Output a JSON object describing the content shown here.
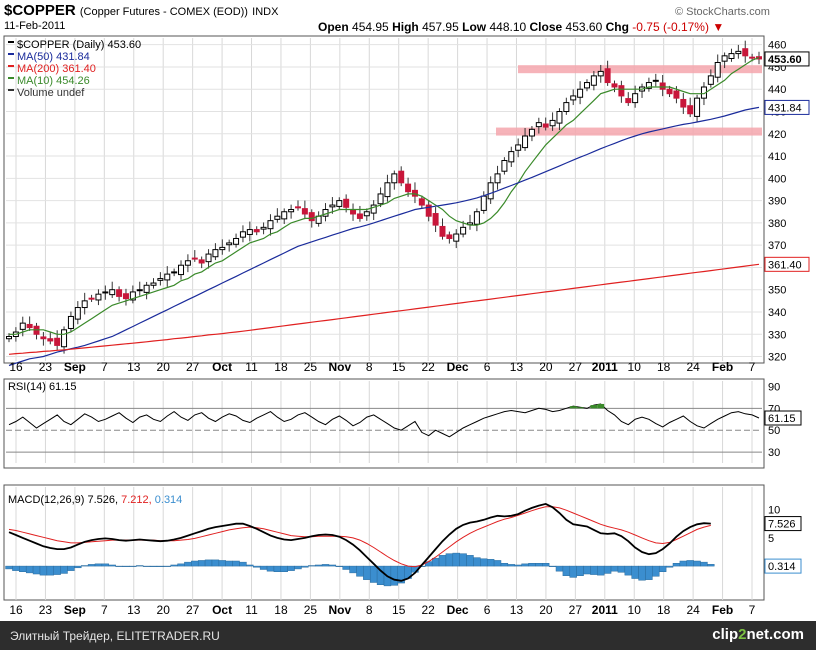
{
  "header": {
    "symbol": "$COPPER",
    "name": "(Copper Futures - COMEX (EOD))",
    "exchange": "INDX",
    "date": "11-Feb-2011",
    "brand": "© StockCharts.com",
    "open_label": "Open",
    "open": "454.95",
    "high_label": "High",
    "high": "457.95",
    "low_label": "Low",
    "low": "448.10",
    "close_label": "Close",
    "close": "453.60",
    "chg_label": "Chg",
    "chg": "-0.75 (-0.17%)"
  },
  "legend": {
    "price": "$COPPER (Daily) 453.60",
    "ma50": "MA(50) 431.84",
    "ma200": "MA(200) 361.40",
    "ma10": "MA(10) 454.26",
    "volume": "Volume undef"
  },
  "rsi": {
    "label": "RSI(14) 61.15",
    "value_tag": "61.15",
    "ticks": [
      "90",
      "70",
      "50",
      "30"
    ]
  },
  "macd": {
    "label_prefix": "MACD(12,26,9)",
    "macd": "7.526",
    "signal": "7.212",
    "hist": "0.314",
    "ticks": [
      "10",
      "5"
    ]
  },
  "price_tags": {
    "close": "453.60",
    "ma50": "431.84",
    "ma200": "361.40"
  },
  "x_ticks": [
    "16",
    "23",
    "Sep",
    "7",
    "13",
    "20",
    "27",
    "Oct",
    "11",
    "18",
    "25",
    "Nov",
    "8",
    "15",
    "22",
    "Dec",
    "6",
    "13",
    "20",
    "27",
    "2011",
    "10",
    "18",
    "24",
    "Feb",
    "7"
  ],
  "footer": {
    "text": "Элитный Трейдер, ELITETRADER.RU",
    "brand_a": "clip",
    "brand_b": "2",
    "brand_c": "net.com"
  },
  "colors": {
    "up": "#000000",
    "down": "#c8163a",
    "ma50": "#1a2b9b",
    "ma200": "#e02020",
    "ma10": "#3a8a2a",
    "rsi": "#000000",
    "macd": "#000000",
    "signal": "#e02020",
    "hist": "#3b8ecf",
    "band": "#f4a6ad"
  },
  "chart_data": [
    {
      "type": "line",
      "title": "$COPPER (Copper Futures - COMEX (EOD))",
      "ylim": [
        318,
        463
      ],
      "yticks": [
        320,
        330,
        340,
        350,
        360,
        370,
        380,
        390,
        400,
        410,
        420,
        430,
        440,
        450,
        460
      ],
      "x_labels": [
        "16",
        "23",
        "Sep",
        "7",
        "13",
        "20",
        "27",
        "Oct",
        "11",
        "18",
        "25",
        "Nov",
        "8",
        "15",
        "22",
        "Dec",
        "6",
        "13",
        "20",
        "27",
        "2011",
        "10",
        "18",
        "24",
        "Feb",
        "7"
      ],
      "series": [
        {
          "name": "$COPPER (Daily)",
          "values": [
            329,
            331,
            335,
            333,
            330,
            328,
            327,
            325,
            332,
            338,
            342,
            345,
            346,
            348,
            349,
            350,
            347,
            346,
            349,
            350,
            352,
            353,
            355,
            357,
            358,
            361,
            363,
            364,
            362,
            366,
            368,
            369,
            371,
            373,
            376,
            377,
            376,
            378,
            381,
            383,
            385,
            386,
            387,
            384,
            381,
            383,
            386,
            388,
            390,
            387,
            384,
            382,
            385,
            388,
            393,
            398,
            402,
            398,
            394,
            392,
            388,
            383,
            379,
            374,
            373,
            375,
            378,
            380,
            385,
            392,
            398,
            402,
            408,
            412,
            415,
            419,
            422,
            425,
            423,
            426,
            430,
            434,
            437,
            440,
            443,
            446,
            448,
            443,
            441,
            437,
            434,
            438,
            441,
            443,
            444,
            440,
            438,
            436,
            432,
            429,
            436,
            441,
            446,
            452,
            455,
            456,
            457,
            455,
            454,
            453.6
          ]
        },
        {
          "name": "MA(10)",
          "values": [
            330,
            330,
            331,
            332,
            332,
            332,
            331,
            330,
            330,
            331,
            333,
            335,
            337,
            339,
            341,
            343,
            344,
            345,
            346,
            347,
            348,
            349,
            350,
            351,
            352,
            354,
            355,
            357,
            358,
            360,
            362,
            363,
            365,
            367,
            369,
            371,
            372,
            373,
            375,
            376,
            378,
            380,
            381,
            382,
            382,
            383,
            384,
            385,
            386,
            386,
            386,
            386,
            386,
            387,
            388,
            389,
            391,
            392,
            393,
            393,
            392,
            390,
            388,
            386,
            383,
            381,
            380,
            379,
            379,
            380,
            382,
            385,
            389,
            394,
            398,
            403,
            407,
            411,
            415,
            418,
            421,
            424,
            426,
            429,
            432,
            435,
            438,
            439,
            440,
            440,
            440,
            440,
            440,
            441,
            441,
            441,
            441,
            440,
            439,
            438,
            438,
            438,
            440,
            442,
            444,
            447,
            449,
            451,
            453,
            454.26
          ]
        },
        {
          "name": "MA(50)",
          "values": [
            316,
            317,
            318,
            319,
            319.5,
            320,
            321,
            322,
            322.7,
            323.5,
            324.2,
            325,
            326,
            327,
            328,
            329,
            330.5,
            332,
            333.5,
            335,
            336.5,
            338,
            339.5,
            341,
            342.5,
            344,
            345.5,
            347,
            348.5,
            350,
            351.5,
            353,
            354.5,
            356,
            357.5,
            359,
            360.5,
            362,
            363.5,
            365,
            366.5,
            368,
            369.5,
            370.5,
            371.5,
            372.5,
            373.5,
            374.5,
            375.5,
            376.5,
            377.5,
            378.2,
            379,
            380,
            381,
            382,
            383,
            384,
            385,
            386,
            386.5,
            387,
            387.5,
            388,
            388.5,
            389,
            389.7,
            390.4,
            391.2,
            392.2,
            393.3,
            394.4,
            395.6,
            396.8,
            398,
            399.2,
            400.4,
            401.7,
            403,
            404.3,
            405.6,
            406.9,
            408.2,
            409.5,
            410.7,
            412,
            413.3,
            414.5,
            415.7,
            416.9,
            418,
            419,
            420,
            420.8,
            421.5,
            422.2,
            422.9,
            423.6,
            424.2,
            424.7,
            425.3,
            425.9,
            426.5,
            427.2,
            428,
            428.9,
            429.8,
            430.7,
            431.3,
            431.84
          ]
        },
        {
          "name": "MA(200)",
          "values": [
            321,
            321.3,
            321.5,
            321.8,
            322,
            322.3,
            322.5,
            322.8,
            323,
            323.3,
            323.6,
            323.9,
            324.2,
            324.5,
            324.8,
            325.1,
            325.4,
            325.7,
            326,
            326.3,
            326.6,
            327,
            327.3,
            327.6,
            328,
            328.3,
            328.6,
            329,
            329.3,
            329.7,
            330,
            330.3,
            330.7,
            331,
            331.4,
            331.8,
            332.2,
            332.6,
            333,
            333.4,
            333.8,
            334.2,
            334.6,
            335,
            335.4,
            335.8,
            336.2,
            336.6,
            337,
            337.4,
            337.8,
            338.2,
            338.6,
            339,
            339.4,
            339.8,
            340.2,
            340.6,
            341,
            341.4,
            341.8,
            342.2,
            342.6,
            343,
            343.4,
            343.8,
            344.2,
            344.6,
            345,
            345.4,
            345.8,
            346.2,
            346.6,
            347,
            347.4,
            347.8,
            348.2,
            348.6,
            349,
            349.4,
            349.8,
            350.2,
            350.6,
            351,
            351.4,
            351.8,
            352.2,
            352.6,
            353,
            353.4,
            353.8,
            354.2,
            354.6,
            355,
            355.4,
            355.8,
            356.2,
            356.6,
            357,
            357.4,
            357.8,
            358.2,
            358.6,
            359,
            359.4,
            359.8,
            360.2,
            360.6,
            361,
            361.4
          ]
        }
      ],
      "support_bands": [
        {
          "value": 449
        },
        {
          "value": 421
        }
      ]
    },
    {
      "type": "line",
      "title": "RSI(14)",
      "ylim": [
        20,
        95
      ],
      "yticks": [
        30,
        50,
        70,
        90
      ],
      "series": [
        {
          "name": "RSI(14)",
          "values": [
            55,
            58,
            62,
            57,
            52,
            56,
            60,
            64,
            58,
            55,
            60,
            65,
            62,
            58,
            60,
            63,
            66,
            61,
            57,
            62,
            64,
            60,
            58,
            63,
            67,
            62,
            59,
            64,
            66,
            61,
            58,
            62,
            65,
            63,
            59,
            57,
            61,
            64,
            67,
            62,
            58,
            60,
            64,
            66,
            62,
            58,
            55,
            60,
            63,
            59,
            54,
            57,
            62,
            64,
            60,
            56,
            52,
            50,
            54,
            58,
            48,
            45,
            50,
            47,
            44,
            48,
            52,
            55,
            58,
            61,
            63,
            65,
            67,
            68,
            67,
            66,
            68,
            70,
            69,
            67,
            68,
            70,
            72,
            71,
            70,
            73,
            74,
            68,
            64,
            58,
            55,
            60,
            62,
            60,
            56,
            53,
            57,
            60,
            63,
            58,
            54,
            52,
            56,
            60,
            63,
            66,
            67,
            65,
            64,
            61.15
          ]
        }
      ]
    },
    {
      "type": "line",
      "title": "MACD(12,26,9)",
      "ylim": [
        -6,
        14
      ],
      "yticks": [
        5,
        10
      ],
      "series": [
        {
          "name": "MACD",
          "values": [
            6,
            5.5,
            5,
            4.5,
            4,
            3.5,
            3.2,
            3,
            3,
            3.3,
            3.8,
            4.3,
            4.6,
            4.8,
            4.9,
            4.8,
            4.6,
            4.5,
            4.6,
            4.7,
            4.6,
            4.5,
            4.4,
            4.5,
            4.7,
            5,
            5.4,
            5.8,
            6.2,
            6.6,
            6.9,
            7.1,
            7.3,
            7.5,
            7.5,
            7.1,
            6.6,
            6,
            5.4,
            5,
            4.7,
            4.6,
            4.8,
            5,
            5.3,
            5.5,
            5.6,
            5.5,
            5.2,
            4.6,
            3.8,
            2.8,
            1.6,
            0.4,
            -0.8,
            -1.8,
            -2.4,
            -2.6,
            -2.2,
            -1.2,
            0.2,
            1.6,
            3,
            4.4,
            5.6,
            6.6,
            7.3,
            7.7,
            7.9,
            8.2,
            8.6,
            8.9,
            8.8,
            8.9,
            9.2,
            9.8,
            10.3,
            10.7,
            11,
            10.4,
            9.4,
            8.2,
            7.4,
            7.2,
            7,
            6.4,
            5.8,
            5.7,
            5.8,
            5.3,
            4.4,
            3.3,
            2.5,
            2.1,
            2.3,
            3,
            4,
            5.2,
            6.2,
            6.9,
            7.4,
            7.6,
            7.526
          ]
        },
        {
          "name": "Signal",
          "values": [
            6.5,
            6.3,
            6,
            5.7,
            5.4,
            5.1,
            4.8,
            4.5,
            4.3,
            4.1,
            4.1,
            4.2,
            4.3,
            4.4,
            4.5,
            4.6,
            4.6,
            4.6,
            4.6,
            4.6,
            4.6,
            4.6,
            4.5,
            4.5,
            4.5,
            4.6,
            4.7,
            4.9,
            5.2,
            5.5,
            5.8,
            6.1,
            6.4,
            6.6,
            6.8,
            6.9,
            6.8,
            6.6,
            6.3,
            6,
            5.7,
            5.4,
            5.3,
            5.2,
            5.2,
            5.3,
            5.3,
            5.3,
            5.3,
            5.2,
            5,
            4.6,
            4,
            3.3,
            2.5,
            1.7,
            1,
            0.4,
            0,
            -0.1,
            0.2,
            0.8,
            1.6,
            2.5,
            3.4,
            4.3,
            5.1,
            5.8,
            6.4,
            6.9,
            7.4,
            7.9,
            8.3,
            8.6,
            9,
            9.4,
            9.8,
            10.2,
            10.5,
            10.5,
            10.3,
            9.9,
            9.4,
            8.9,
            8.4,
            7.9,
            7.4,
            7,
            6.7,
            6.4,
            6,
            5.5,
            5,
            4.5,
            4.1,
            4,
            4.2,
            4.7,
            5.3,
            5.9,
            6.5,
            6.9,
            7.212
          ]
        },
        {
          "name": "Histogram",
          "values": [
            -0.5,
            -0.8,
            -1,
            -1.2,
            -1.4,
            -1.6,
            -1.6,
            -1.5,
            -1.3,
            -0.8,
            -0.3,
            0.1,
            0.3,
            0.4,
            0.4,
            0.2,
            0,
            -0.1,
            0,
            0.1,
            0,
            -0.1,
            -0.1,
            0,
            0.2,
            0.4,
            0.7,
            0.9,
            1,
            1.1,
            1.1,
            1,
            0.9,
            0.9,
            0.7,
            0.2,
            -0.2,
            -0.6,
            -0.9,
            -1,
            -1,
            -0.8,
            -0.5,
            -0.2,
            0.1,
            0.2,
            0.3,
            0.2,
            -0.1,
            -0.6,
            -1.2,
            -1.8,
            -2.4,
            -2.9,
            -3.3,
            -3.5,
            -3.4,
            -3,
            -2.2,
            -1.1,
            0,
            0.8,
            1.4,
            1.9,
            2.2,
            2.3,
            2.2,
            1.9,
            1.5,
            1.3,
            1.2,
            1,
            0.5,
            0.3,
            0.2,
            0.4,
            0.5,
            0.5,
            0.5,
            -0.1,
            -0.9,
            -1.7,
            -2,
            -1.7,
            -1.4,
            -1.5,
            -1.6,
            -1.3,
            -0.9,
            -1.1,
            -1.6,
            -2.2,
            -2.5,
            -2.4,
            -1.8,
            -1,
            -0.2,
            0.5,
            0.9,
            1,
            0.9,
            0.7,
            0.314
          ]
        }
      ]
    }
  ]
}
